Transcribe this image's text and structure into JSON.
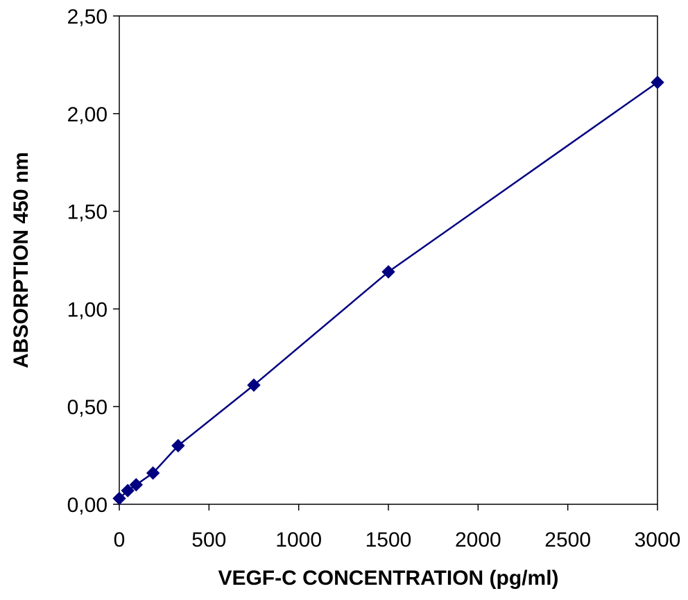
{
  "chart_data": {
    "type": "line",
    "title": "",
    "xlabel": "VEGF-C CONCENTRATION (pg/ml)",
    "ylabel": "ABSORPTION 450 nm",
    "xlim": [
      0,
      3000
    ],
    "ylim": [
      0,
      2.5
    ],
    "x_ticks": [
      0,
      500,
      1000,
      1500,
      2000,
      2500,
      3000
    ],
    "y_ticks": [
      0,
      0.5,
      1.0,
      1.5,
      2.0,
      2.5
    ],
    "x_tick_labels": [
      "0",
      "500",
      "1000",
      "1500",
      "2000",
      "2500",
      "3000"
    ],
    "y_tick_labels": [
      "0,00",
      "0,50",
      "1,00",
      "1,50",
      "2,00",
      "2,50"
    ],
    "grid": false,
    "legend": "none",
    "series": [
      {
        "color": "#000080",
        "marker": "diamond",
        "x": [
          0,
          47,
          94,
          188,
          328,
          750,
          1500,
          3000
        ],
        "y": [
          0.03,
          0.07,
          0.1,
          0.16,
          0.3,
          0.61,
          1.19,
          2.16
        ]
      }
    ]
  }
}
